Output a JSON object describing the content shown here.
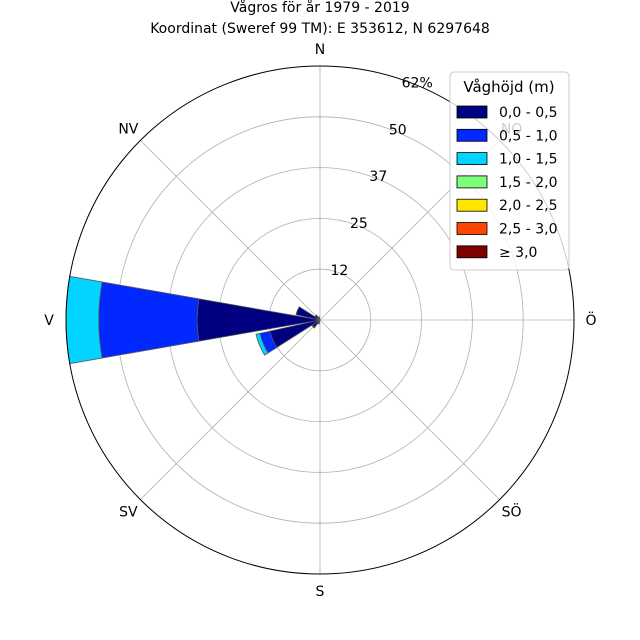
{
  "chart_data": {
    "type": "windrose",
    "title": "Vågros för år 1979 - 2019",
    "subtitle": "Koordinat (Sweref 99 TM): E 353612, N 6297648",
    "directions": [
      "N",
      "NO",
      "Ö",
      "SÖ",
      "S",
      "SV",
      "V",
      "NV"
    ],
    "direction_angles_deg": [
      0,
      45,
      90,
      135,
      180,
      225,
      270,
      315
    ],
    "radial_ticks": [
      "12",
      "25",
      "37",
      "50",
      "62%"
    ],
    "radial_tick_values": [
      12.4,
      24.8,
      37.2,
      49.6,
      62.0
    ],
    "radial_max": 62.0,
    "grid": true,
    "legend": {
      "title": "Våghöjd (m)",
      "placement": "top-right"
    },
    "series": [
      {
        "name": "0,0 - 0,5",
        "color": "#000080"
      },
      {
        "name": "0,5 - 1,0",
        "color": "#0028ff"
      },
      {
        "name": "1,0 - 1,5",
        "color": "#00d4ff"
      },
      {
        "name": "1,5 - 2,0",
        "color": "#7dff7a"
      },
      {
        "name": "2,0 - 2,5",
        "color": "#ffe500"
      },
      {
        "name": "2,5 - 3,0",
        "color": "#ff4500"
      },
      {
        "name": "≥ 3,0",
        "color": "#800000"
      }
    ],
    "sectors": [
      {
        "direction_deg": 270,
        "cumulative": [
          30.0,
          54.0,
          62.0,
          62.0,
          62.0,
          62.0,
          62.0
        ]
      },
      {
        "direction_deg": 247.5,
        "cumulative": [
          12.5,
          15.0,
          16.0,
          16.0,
          16.0,
          16.0,
          16.0
        ]
      },
      {
        "direction_deg": 292.5,
        "cumulative": [
          6.0,
          6.0,
          6.0,
          6.0,
          6.0,
          6.0,
          6.0
        ]
      },
      {
        "direction_deg": 225,
        "cumulative": [
          2.2,
          2.4,
          2.4,
          2.4,
          2.4,
          2.4,
          2.4
        ]
      },
      {
        "direction_deg": 315,
        "cumulative": [
          1.5,
          1.5,
          1.5,
          1.5,
          1.5,
          1.5,
          1.5
        ]
      },
      {
        "direction_deg": 202.5,
        "cumulative": [
          1.0,
          1.0,
          1.0,
          1.0,
          1.0,
          1.0,
          1.0
        ]
      },
      {
        "direction_deg": 337.5,
        "cumulative": [
          0.8,
          0.8,
          0.8,
          0.8,
          0.8,
          0.8,
          0.8
        ]
      }
    ]
  }
}
